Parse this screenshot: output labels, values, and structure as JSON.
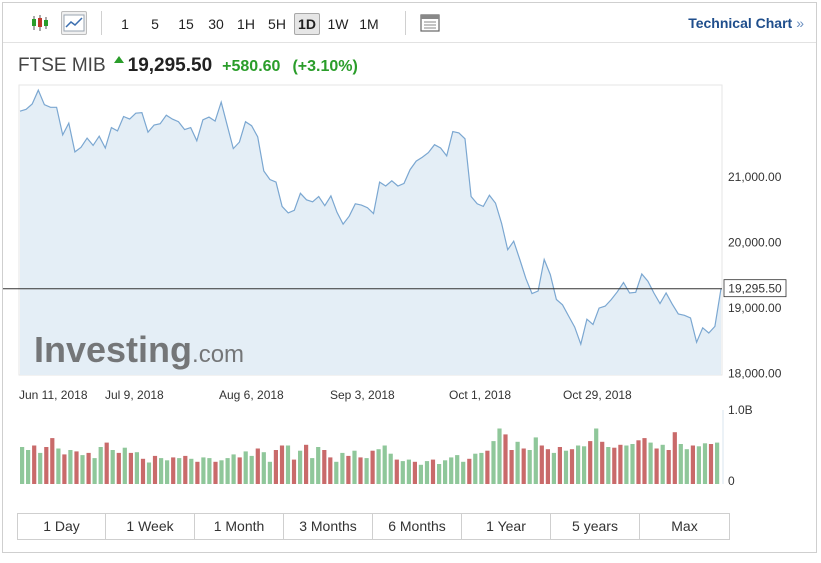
{
  "toolbar": {
    "candlestick_icon": "candlestick-chart-icon",
    "area_icon": "area-chart-icon",
    "intervals": [
      "1",
      "5",
      "15",
      "30",
      "1H",
      "5H",
      "1D",
      "1W",
      "1M"
    ],
    "active_interval": "1D",
    "settings_icon": "chart-settings-icon",
    "technical_chart_label": "Technical Chart",
    "technical_chart_arrow": "»"
  },
  "quote": {
    "name": "FTSE MIB",
    "price": "19,295.50",
    "change": "+580.60",
    "change_pct": "(+3.10%)",
    "up_color": "#2a9d2a"
  },
  "watermark": {
    "brand": "Investing",
    "suffix": ".com"
  },
  "chart_data": {
    "type": "area",
    "x_tick_labels": [
      "Jun 11, 2018",
      "Jul 9, 2018",
      "Aug 6, 2018",
      "Sep 3, 2018",
      "Oct 1, 2018",
      "Oct 29, 2018"
    ],
    "y_tick_labels": [
      "21,000.00",
      "20,000.00",
      "19,000.00",
      "18,000.00"
    ],
    "y_ticks": [
      21000,
      20000,
      19000,
      18000
    ],
    "ylim": [
      17980,
      22400
    ],
    "current_value": 19295.5,
    "current_label": "19,295.50",
    "line_color": "#7ba7d1",
    "fill_color": "#e4eef6",
    "series": [
      {
        "values": [
          22000,
          22030,
          22110,
          22320,
          22100,
          22060,
          22060,
          21640,
          21820,
          21380,
          21450,
          21590,
          21480,
          21620,
          21440,
          21750,
          21700,
          21920,
          21880,
          21970,
          21980,
          21680,
          21790,
          21810,
          21940,
          21880,
          21840,
          21720,
          21750,
          21550,
          21870,
          21910,
          21850,
          22140,
          21780,
          21430,
          21530,
          21840,
          21780,
          21610,
          21090,
          20960,
          20920,
          20550,
          20450,
          20490,
          20750,
          20650,
          20620,
          20700,
          20560,
          20710,
          20460,
          20280,
          20400,
          20590,
          20570,
          20530,
          20440,
          20920,
          20860,
          20940,
          20860,
          20900,
          21110,
          21240,
          21300,
          21370,
          21490,
          21440,
          21320,
          21690,
          21670,
          21580,
          20700,
          20590,
          20550,
          20720,
          20600,
          20290,
          19890,
          20020,
          19740,
          19450,
          19220,
          19260,
          19740,
          19510,
          19130,
          19050,
          18880,
          18710,
          18450,
          18830,
          18750,
          19000,
          19030,
          19130,
          19250,
          19390,
          19230,
          19240,
          19520,
          19410,
          19230,
          19070,
          19230,
          19060,
          18910,
          18890,
          18850,
          18480,
          18700,
          18620,
          18720,
          19296
        ]
      }
    ],
    "volume": {
      "label_top": "1.0B",
      "label_zero": "0",
      "max": 1.0,
      "up_color": "#8fc79a",
      "down_color": "#c96a6a",
      "values": [
        0.5,
        0.46,
        0.52,
        0.42,
        0.5,
        0.62,
        0.48,
        0.4,
        0.46,
        0.44,
        0.39,
        0.42,
        0.35,
        0.5,
        0.56,
        0.46,
        0.42,
        0.49,
        0.42,
        0.43,
        0.34,
        0.29,
        0.38,
        0.35,
        0.32,
        0.36,
        0.35,
        0.38,
        0.34,
        0.3,
        0.36,
        0.35,
        0.3,
        0.32,
        0.35,
        0.4,
        0.36,
        0.44,
        0.38,
        0.48,
        0.43,
        0.3,
        0.46,
        0.52,
        0.52,
        0.33,
        0.45,
        0.53,
        0.35,
        0.5,
        0.46,
        0.36,
        0.3,
        0.42,
        0.38,
        0.45,
        0.36,
        0.35,
        0.45,
        0.47,
        0.52,
        0.41,
        0.33,
        0.31,
        0.33,
        0.3,
        0.26,
        0.31,
        0.33,
        0.27,
        0.32,
        0.36,
        0.39,
        0.3,
        0.34,
        0.41,
        0.42,
        0.45,
        0.58,
        0.75,
        0.67,
        0.46,
        0.57,
        0.48,
        0.46,
        0.63,
        0.52,
        0.47,
        0.42,
        0.5,
        0.45,
        0.47,
        0.52,
        0.51,
        0.58,
        0.75,
        0.57,
        0.5,
        0.49,
        0.53,
        0.52,
        0.54,
        0.59,
        0.62,
        0.56,
        0.48,
        0.53,
        0.46,
        0.7,
        0.54,
        0.47,
        0.52,
        0.51,
        0.55,
        0.54,
        0.56
      ],
      "up": [
        1,
        1,
        0,
        1,
        0,
        0,
        1,
        0,
        1,
        0,
        1,
        0,
        1,
        1,
        0,
        1,
        0,
        1,
        0,
        1,
        0,
        1,
        0,
        1,
        1,
        0,
        1,
        0,
        1,
        0,
        1,
        1,
        0,
        1,
        1,
        1,
        0,
        1,
        1,
        0,
        1,
        1,
        0,
        0,
        1,
        0,
        1,
        0,
        1,
        1,
        0,
        0,
        1,
        1,
        0,
        1,
        0,
        1,
        0,
        1,
        1,
        1,
        0,
        1,
        1,
        0,
        1,
        1,
        0,
        1,
        1,
        1,
        1,
        1,
        0,
        1,
        1,
        0,
        1,
        1,
        0,
        0,
        1,
        0,
        1,
        1,
        0,
        0,
        1,
        0,
        1,
        0,
        1,
        1,
        0,
        1,
        0,
        1,
        0,
        0,
        1,
        1,
        0,
        0,
        1,
        0,
        1,
        0,
        0,
        1,
        1,
        0,
        1,
        1,
        0,
        1
      ]
    }
  },
  "ranges": [
    "1 Day",
    "1 Week",
    "1 Month",
    "3 Months",
    "6 Months",
    "1 Year",
    "5 years",
    "Max"
  ]
}
